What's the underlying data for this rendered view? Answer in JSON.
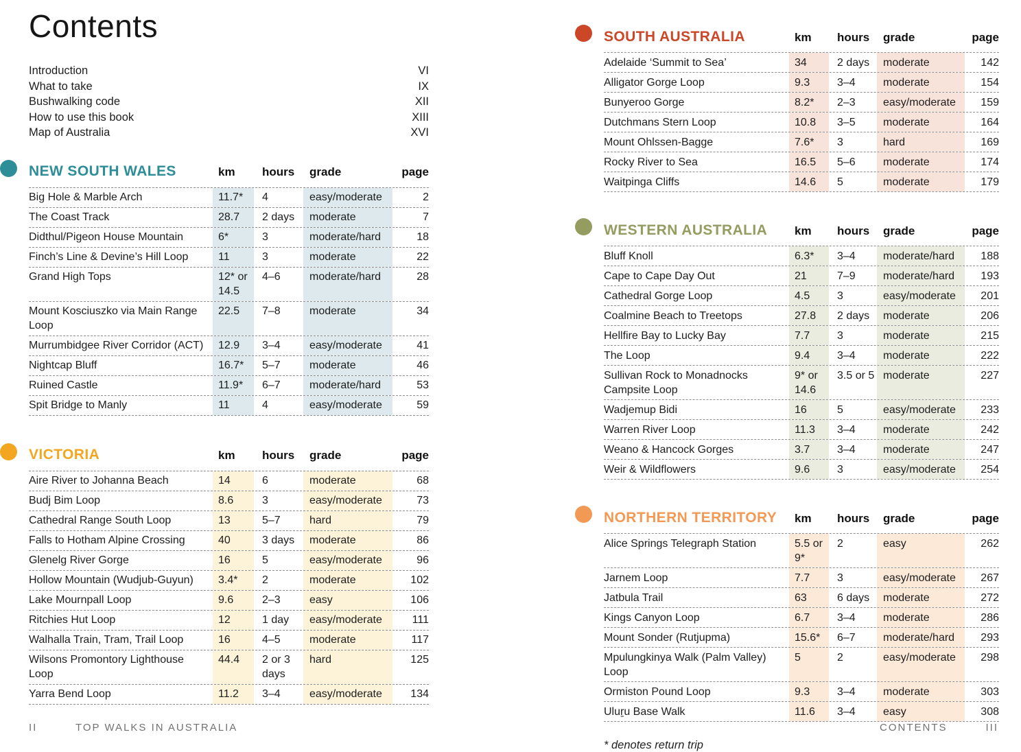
{
  "page": {
    "title": "Contents",
    "footnote": "* denotes return trip",
    "footer": {
      "left_page_number": "II",
      "left_text": "TOP WALKS IN AUSTRALIA",
      "right_text": "CONTENTS",
      "right_page_number": "III"
    }
  },
  "front_matter": [
    {
      "label": "Introduction",
      "page": "VI"
    },
    {
      "label": "What to take",
      "page": "IX"
    },
    {
      "label": "Bushwalking code",
      "page": "XII"
    },
    {
      "label": "How to use this book",
      "page": "XIII"
    },
    {
      "label": "Map of Australia",
      "page": "XVI"
    }
  ],
  "column_headers": {
    "km": "km",
    "hours": "hours",
    "grade": "grade",
    "page": "page"
  },
  "sections": [
    {
      "name": "NEW SOUTH WALES",
      "column": "left",
      "color": "#2d8e97",
      "shade": "#dde9ec",
      "rows": [
        {
          "name": "Big Hole & Marble Arch",
          "km": "11.7*",
          "hours": "4",
          "grade": "easy/moderate",
          "page": "2"
        },
        {
          "name": "The Coast Track",
          "km": "28.7",
          "hours": "2 days",
          "grade": "moderate",
          "page": "7"
        },
        {
          "name": "Didthul/Pigeon House Mountain",
          "km": "6*",
          "hours": "3",
          "grade": "moderate/hard",
          "page": "18"
        },
        {
          "name": "Finch’s Line & Devine’s Hill Loop",
          "km": "11",
          "hours": "3",
          "grade": "moderate",
          "page": "22"
        },
        {
          "name": "Grand High Tops",
          "km": "12* or 14.5",
          "hours": "4–6",
          "grade": "moderate/hard",
          "page": "28"
        },
        {
          "name": "Mount Kosciuszko via Main Range Loop",
          "km": "22.5",
          "hours": "7–8",
          "grade": "moderate",
          "page": "34"
        },
        {
          "name": "Murrumbidgee River Corridor (ACT)",
          "km": "12.9",
          "hours": "3–4",
          "grade": "easy/moderate",
          "page": "41"
        },
        {
          "name": "Nightcap Bluff",
          "km": "16.7*",
          "hours": "5–7",
          "grade": "moderate",
          "page": "46"
        },
        {
          "name": "Ruined Castle",
          "km": "11.9*",
          "hours": "6–7",
          "grade": "moderate/hard",
          "page": "53"
        },
        {
          "name": "Spit Bridge to Manly",
          "km": "11",
          "hours": "4",
          "grade": "easy/moderate",
          "page": "59"
        }
      ]
    },
    {
      "name": "VICTORIA",
      "column": "left",
      "color": "#f3a61f",
      "shade": "#fdf3d9",
      "rows": [
        {
          "name": "Aire River to Johanna Beach",
          "km": "14",
          "hours": "6",
          "grade": "moderate",
          "page": "68"
        },
        {
          "name": "Budj Bim Loop",
          "km": "8.6",
          "hours": "3",
          "grade": "easy/moderate",
          "page": "73"
        },
        {
          "name": "Cathedral Range South Loop",
          "km": "13",
          "hours": "5–7",
          "grade": "hard",
          "page": "79"
        },
        {
          "name": "Falls to Hotham Alpine Crossing",
          "km": "40",
          "hours": "3 days",
          "grade": "moderate",
          "page": "86"
        },
        {
          "name": "Glenelg River Gorge",
          "km": "16",
          "hours": "5",
          "grade": "easy/moderate",
          "page": "96"
        },
        {
          "name": "Hollow Mountain (Wudjub-Guyun)",
          "km": "3.4*",
          "hours": "2",
          "grade": "moderate",
          "page": "102"
        },
        {
          "name": "Lake Mournpall Loop",
          "km": "9.6",
          "hours": "2–3",
          "grade": "easy",
          "page": "106"
        },
        {
          "name": "Ritchies Hut Loop",
          "km": "12",
          "hours": "1 day",
          "grade": "easy/moderate",
          "page": "111"
        },
        {
          "name": "Walhalla Train, Tram, Trail Loop",
          "km": "16",
          "hours": "4–5",
          "grade": "moderate",
          "page": "117"
        },
        {
          "name": "Wilsons Promontory Lighthouse Loop",
          "km": "44.4",
          "hours": "2 or 3 days",
          "grade": "hard",
          "page": "125"
        },
        {
          "name": "Yarra Bend Loop",
          "km": "11.2",
          "hours": "3–4",
          "grade": "easy/moderate",
          "page": "134"
        }
      ]
    },
    {
      "name": "SOUTH AUSTRALIA",
      "column": "right",
      "color": "#cb4727",
      "shade": "#f8e3da",
      "rows": [
        {
          "name": "Adelaide ‘Summit to Sea’",
          "km": "34",
          "hours": "2 days",
          "grade": "moderate",
          "page": "142"
        },
        {
          "name": "Alligator Gorge Loop",
          "km": "9.3",
          "hours": "3–4",
          "grade": "moderate",
          "page": "154"
        },
        {
          "name": "Bunyeroo Gorge",
          "km": "8.2*",
          "hours": "2–3",
          "grade": "easy/moderate",
          "page": "159"
        },
        {
          "name": "Dutchmans Stern Loop",
          "km": "10.8",
          "hours": "3–5",
          "grade": "moderate",
          "page": "164"
        },
        {
          "name": "Mount Ohlssen-Bagge",
          "km": "7.6*",
          "hours": "3",
          "grade": "hard",
          "page": "169"
        },
        {
          "name": "Rocky River to Sea",
          "km": "16.5",
          "hours": "5–6",
          "grade": "moderate",
          "page": "174"
        },
        {
          "name": "Waitpinga Cliffs",
          "km": "14.6",
          "hours": "5",
          "grade": "moderate",
          "page": "179"
        }
      ]
    },
    {
      "name": "WESTERN AUSTRALIA",
      "column": "right",
      "color": "#949c60",
      "shade": "#e9ecdf",
      "rows": [
        {
          "name": "Bluff Knoll",
          "km": "6.3*",
          "hours": "3–4",
          "grade": "moderate/hard",
          "page": "188"
        },
        {
          "name": "Cape to Cape Day Out",
          "km": "21",
          "hours": "7–9",
          "grade": "moderate/hard",
          "page": "193"
        },
        {
          "name": "Cathedral Gorge Loop",
          "km": "4.5",
          "hours": "3",
          "grade": "easy/moderate",
          "page": "201"
        },
        {
          "name": "Coalmine Beach to Treetops",
          "km": "27.8",
          "hours": "2 days",
          "grade": "moderate",
          "page": "206"
        },
        {
          "name": "Hellfire Bay to Lucky Bay",
          "km": "7.7",
          "hours": "3",
          "grade": "moderate",
          "page": "215"
        },
        {
          "name": "The Loop",
          "km": "9.4",
          "hours": "3–4",
          "grade": "moderate",
          "page": "222"
        },
        {
          "name": "Sullivan Rock to Monadnocks Campsite Loop",
          "km": "9* or 14.6",
          "hours": "3.5 or 5",
          "grade": "moderate",
          "page": "227"
        },
        {
          "name": "Wadjemup Bidi",
          "km": "16",
          "hours": "5",
          "grade": "easy/moderate",
          "page": "233"
        },
        {
          "name": "Warren River Loop",
          "km": "11.3",
          "hours": "3–4",
          "grade": "moderate",
          "page": "242"
        },
        {
          "name": "Weano & Hancock Gorges",
          "km": "3.7",
          "hours": "3–4",
          "grade": "moderate",
          "page": "247"
        },
        {
          "name": "Weir & Wildflowers",
          "km": "9.6",
          "hours": "3",
          "grade": "easy/moderate",
          "page": "254"
        }
      ]
    },
    {
      "name": "NORTHERN TERRITORY",
      "column": "right",
      "color": "#f29a55",
      "shade": "#fce9d8",
      "rows": [
        {
          "name": "Alice Springs Telegraph Station",
          "km": "5.5 or 9*",
          "hours": "2",
          "grade": "easy",
          "page": "262"
        },
        {
          "name": "Jarnem Loop",
          "km": "7.7",
          "hours": "3",
          "grade": "easy/moderate",
          "page": "267"
        },
        {
          "name": "Jatbula Trail",
          "km": "63",
          "hours": "6 days",
          "grade": "moderate",
          "page": "272"
        },
        {
          "name": "Kings Canyon Loop",
          "km": "6.7",
          "hours": "3–4",
          "grade": "moderate",
          "page": "286"
        },
        {
          "name": "Mount Sonder (Rutjupma)",
          "km": "15.6*",
          "hours": "6–7",
          "grade": "moderate/hard",
          "page": "293"
        },
        {
          "name": "Mpulungkinya Walk (Palm Valley) Loop",
          "km": "5",
          "hours": "2",
          "grade": "easy/moderate",
          "page": "298"
        },
        {
          "name": "Ormiston Pound Loop",
          "km": "9.3",
          "hours": "3–4",
          "grade": "moderate",
          "page": "303"
        },
        {
          "name": "Uluṟu Base Walk",
          "km": "11.6",
          "hours": "3–4",
          "grade": "easy",
          "page": "308"
        }
      ]
    }
  ]
}
